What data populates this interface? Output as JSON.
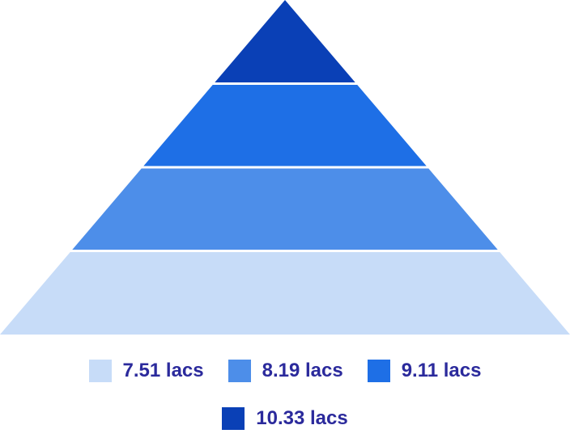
{
  "chart_data": {
    "type": "pyramid",
    "title": "",
    "order": "bottom-to-top",
    "categories": [
      "7.51 lacs",
      "8.19 lacs",
      "9.11 lacs",
      "10.33 lacs"
    ],
    "values": [
      7.51,
      8.19,
      9.11,
      10.33
    ],
    "unit": "lacs",
    "colors": [
      "#c7dcf8",
      "#4d8ee9",
      "#1e6fe6",
      "#0a40b6"
    ],
    "legend": [
      {
        "label": "7.51 lacs",
        "color": "#c7dcf8"
      },
      {
        "label": "8.19 lacs",
        "color": "#4d8ee9"
      },
      {
        "label": "9.11 lacs",
        "color": "#1e6fe6"
      },
      {
        "label": "10.33 lacs",
        "color": "#0a40b6"
      }
    ],
    "legend_position": "bottom"
  }
}
